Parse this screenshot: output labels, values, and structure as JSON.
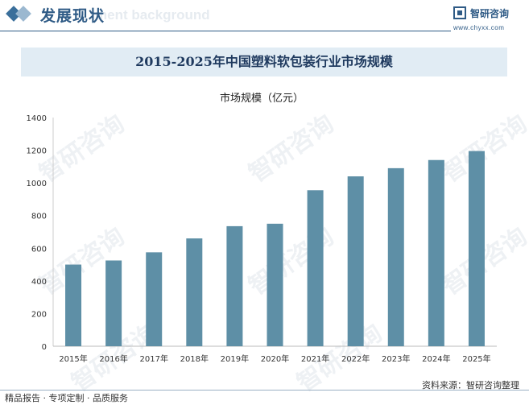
{
  "header": {
    "section_title": "发展现状",
    "section_subtitle": "ment background",
    "brand_name": "智研咨询",
    "brand_url": "www.chyxx.com",
    "watermark_text": "智研咨询"
  },
  "footer": {
    "services": "精品报告 · 专项定制 · 品质服务",
    "source": "资料来源：智研咨询整理"
  },
  "colors": {
    "bar": "#5e8fa6",
    "accent": "#2f5b86",
    "banner": "#e1ecf4"
  },
  "chart_data": {
    "type": "bar",
    "title": "2015-2025年中国塑料软包装行业市场规模",
    "ylabel": "市场规模（亿元）",
    "xlabel": "",
    "categories": [
      "2015年",
      "2016年",
      "2017年",
      "2018年",
      "2019年",
      "2020年",
      "2021年",
      "2022年",
      "2023年",
      "2024年",
      "2025年"
    ],
    "values": [
      500,
      525,
      575,
      660,
      735,
      750,
      955,
      1040,
      1090,
      1140,
      1195
    ],
    "ylim": [
      0,
      1400
    ],
    "yticks": [
      "0",
      "200",
      "400",
      "600",
      "800",
      "1000",
      "1200",
      "1400"
    ],
    "grid": false,
    "legend": "none"
  }
}
